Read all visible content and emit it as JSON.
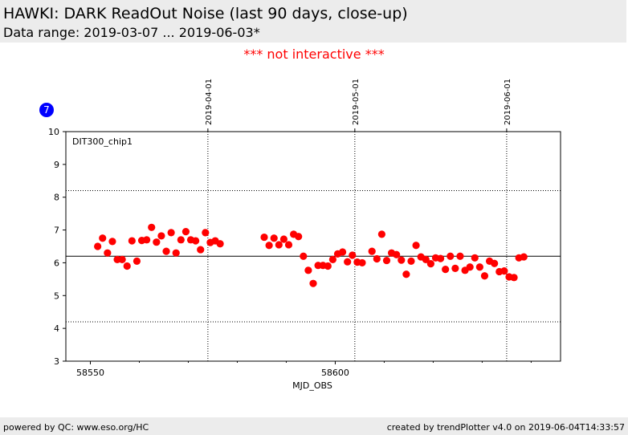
{
  "header": {
    "title": "HAWKI: DARK ReadOut Noise (last 90 days, close-up)",
    "subtitle": "Data range: 2019-03-07 ... 2019-06-03*"
  },
  "notice": "*** not interactive ***",
  "badge": "7",
  "footer": {
    "left": "powered by QC: www.eso.org/HC",
    "right": "created by trendPlotter v4.0 on 2019-06-04T14:33:57"
  },
  "chart_data": {
    "type": "scatter",
    "panel_label": "DIT300_chip1",
    "xlabel": "MJD_OBS",
    "ylabel": "",
    "xlim": [
      58545,
      58646
    ],
    "ylim": [
      3,
      10
    ],
    "x_ticks": [
      58550,
      58600
    ],
    "y_ticks": [
      3,
      4,
      5,
      6,
      7,
      8,
      9,
      10
    ],
    "date_markers": [
      {
        "x": 58574,
        "label": "2019-04-01"
      },
      {
        "x": 58604,
        "label": "2019-05-01"
      },
      {
        "x": 58635,
        "label": "2019-06-01"
      }
    ],
    "reference_line": 6.2,
    "threshold_lines": [
      8.2,
      4.2
    ],
    "marker_color": "#ff0000",
    "points": [
      [
        58551.5,
        6.5
      ],
      [
        58552.5,
        6.75
      ],
      [
        58553.5,
        6.3
      ],
      [
        58554.5,
        6.65
      ],
      [
        58555.5,
        6.1
      ],
      [
        58556.5,
        6.1
      ],
      [
        58557.5,
        5.9
      ],
      [
        58558.5,
        6.67
      ],
      [
        58559.5,
        6.05
      ],
      [
        58560.5,
        6.68
      ],
      [
        58561.5,
        6.7
      ],
      [
        58562.5,
        7.08
      ],
      [
        58563.5,
        6.63
      ],
      [
        58564.5,
        6.82
      ],
      [
        58565.5,
        6.35
      ],
      [
        58566.5,
        6.92
      ],
      [
        58567.5,
        6.3
      ],
      [
        58568.5,
        6.7
      ],
      [
        58569.5,
        6.95
      ],
      [
        58570.5,
        6.7
      ],
      [
        58571.5,
        6.67
      ],
      [
        58572.5,
        6.4
      ],
      [
        58573.5,
        6.92
      ],
      [
        58574.5,
        6.62
      ],
      [
        58575.5,
        6.67
      ],
      [
        58576.5,
        6.58
      ],
      [
        58585.5,
        6.78
      ],
      [
        58586.5,
        6.53
      ],
      [
        58587.5,
        6.75
      ],
      [
        58588.5,
        6.55
      ],
      [
        58589.5,
        6.72
      ],
      [
        58590.5,
        6.55
      ],
      [
        58591.5,
        6.87
      ],
      [
        58592.5,
        6.8
      ],
      [
        58593.5,
        6.2
      ],
      [
        58594.5,
        5.77
      ],
      [
        58595.5,
        5.37
      ],
      [
        58596.5,
        5.92
      ],
      [
        58597.5,
        5.92
      ],
      [
        58598.5,
        5.9
      ],
      [
        58599.5,
        6.1
      ],
      [
        58600.5,
        6.27
      ],
      [
        58601.5,
        6.33
      ],
      [
        58602.5,
        6.03
      ],
      [
        58603.5,
        6.23
      ],
      [
        58604.5,
        6.02
      ],
      [
        58605.5,
        6.0
      ],
      [
        58607.5,
        6.35
      ],
      [
        58608.5,
        6.12
      ],
      [
        58609.5,
        6.87
      ],
      [
        58610.5,
        6.07
      ],
      [
        58611.5,
        6.3
      ],
      [
        58612.5,
        6.25
      ],
      [
        58613.5,
        6.08
      ],
      [
        58614.5,
        5.65
      ],
      [
        58615.5,
        6.05
      ],
      [
        58616.5,
        6.53
      ],
      [
        58617.5,
        6.18
      ],
      [
        58618.5,
        6.1
      ],
      [
        58619.5,
        5.97
      ],
      [
        58620.5,
        6.15
      ],
      [
        58621.5,
        6.13
      ],
      [
        58622.5,
        5.8
      ],
      [
        58623.5,
        6.2
      ],
      [
        58624.5,
        5.83
      ],
      [
        58625.5,
        6.2
      ],
      [
        58626.5,
        5.77
      ],
      [
        58627.5,
        5.87
      ],
      [
        58628.5,
        6.15
      ],
      [
        58629.5,
        5.87
      ],
      [
        58630.5,
        5.6
      ],
      [
        58631.5,
        6.05
      ],
      [
        58632.5,
        5.98
      ],
      [
        58633.5,
        5.73
      ],
      [
        58634.5,
        5.75
      ],
      [
        58635.5,
        5.57
      ],
      [
        58636.5,
        5.55
      ],
      [
        58637.5,
        6.15
      ],
      [
        58638.5,
        6.18
      ]
    ]
  }
}
